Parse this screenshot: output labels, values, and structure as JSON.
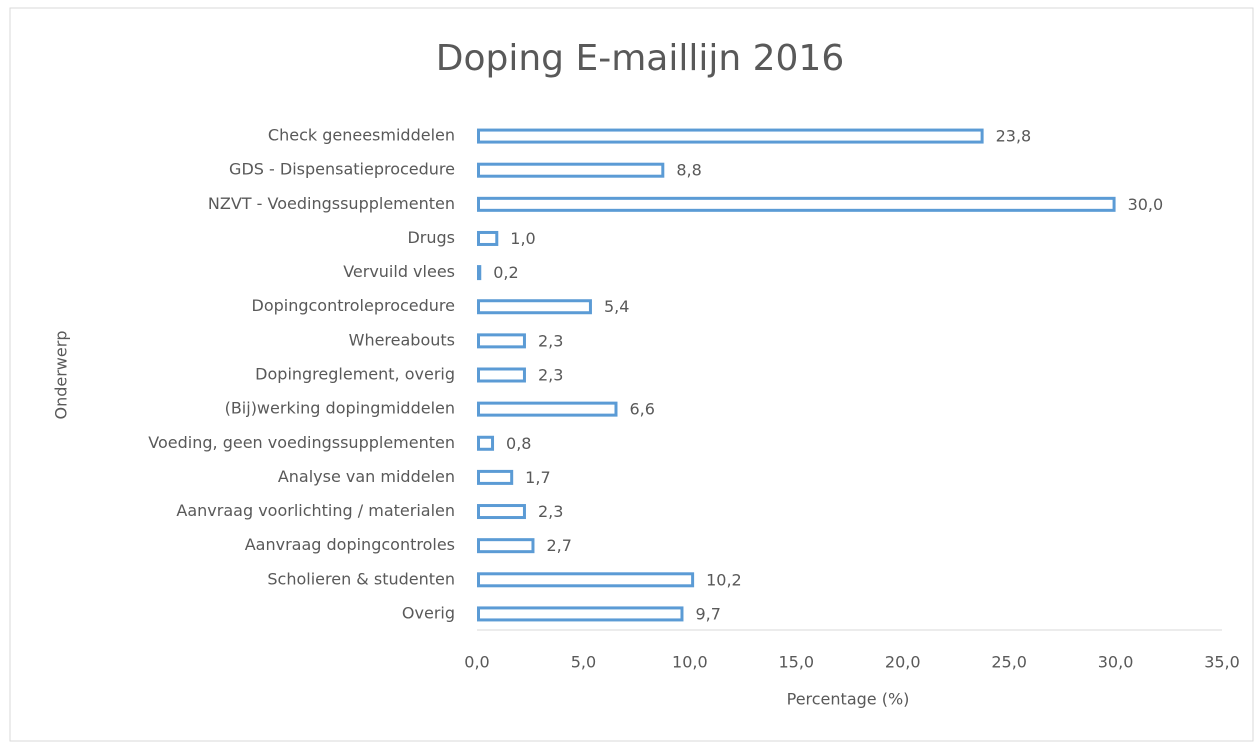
{
  "chart_data": {
    "type": "bar",
    "title": "Doping E-maillijn 2016",
    "x_label": "Percentage (%)",
    "y_label": "Onderwerp",
    "categories": [
      "Check geneesmiddelen",
      "GDS - Dispensatieprocedure",
      "NZVT - Voedingssupplementen",
      "Drugs",
      "Vervuild vlees",
      "Dopingcontroleprocedure",
      "Whereabouts",
      "Dopingreglement, overig",
      "(Bij)werking dopingmiddelen",
      "Voeding, geen voedingssupplementen",
      "Analyse van middelen",
      "Aanvraag voorlichting / materialen",
      "Aanvraag dopingcontroles",
      "Scholieren & studenten",
      "Overig"
    ],
    "values": [
      23.8,
      8.8,
      30.0,
      1.0,
      0.2,
      5.4,
      2.3,
      2.3,
      6.6,
      0.8,
      1.7,
      2.3,
      2.7,
      10.2,
      9.7
    ],
    "value_labels": [
      "23,8",
      "8,8",
      "30,0",
      "1,0",
      "0,2",
      "5,4",
      "2,3",
      "2,3",
      "6,6",
      "0,8",
      "1,7",
      "2,3",
      "2,7",
      "10,2",
      "9,7"
    ],
    "color": "#5b9bd5",
    "xlim": [
      0,
      35
    ],
    "xticks": [
      {
        "value": 0,
        "label": "0,0"
      },
      {
        "value": 5,
        "label": "5,0"
      },
      {
        "value": 10,
        "label": "10,0"
      },
      {
        "value": 15,
        "label": "15,0"
      },
      {
        "value": 20,
        "label": "20,0"
      },
      {
        "value": 25,
        "label": "25,0"
      },
      {
        "value": 30,
        "label": "30,0"
      },
      {
        "value": 35,
        "label": "35,0"
      }
    ]
  }
}
